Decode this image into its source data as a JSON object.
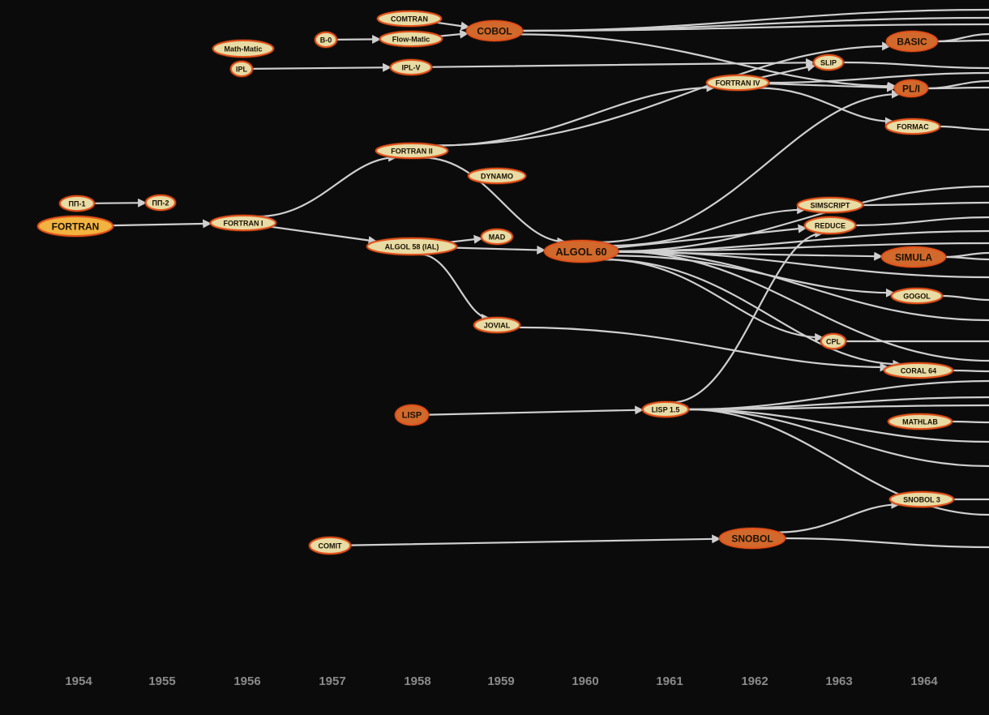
{
  "diagram": {
    "nodes": [
      {
        "id": "fortran",
        "label": "FORTRAN",
        "style": "gold"
      },
      {
        "id": "pp1",
        "label": "ПП-1",
        "style": "light"
      },
      {
        "id": "pp2",
        "label": "ПП-2",
        "style": "light"
      },
      {
        "id": "mathmatic",
        "label": "Math-Matic",
        "style": "light"
      },
      {
        "id": "ipl",
        "label": "IPL",
        "style": "light"
      },
      {
        "id": "fortran1",
        "label": "FORTRAN I",
        "style": "light"
      },
      {
        "id": "b0",
        "label": "B-0",
        "style": "light"
      },
      {
        "id": "comit",
        "label": "COMIT",
        "style": "light"
      },
      {
        "id": "comtran",
        "label": "COMTRAN",
        "style": "light"
      },
      {
        "id": "flowmatic",
        "label": "Flow-Matic",
        "style": "light"
      },
      {
        "id": "iplv",
        "label": "IPL-V",
        "style": "light"
      },
      {
        "id": "fortran2",
        "label": "FORTRAN II",
        "style": "light"
      },
      {
        "id": "algol58",
        "label": "ALGOL 58 (IAL)",
        "style": "light"
      },
      {
        "id": "lisp",
        "label": "LISP",
        "style": "dark"
      },
      {
        "id": "cobol",
        "label": "COBOL",
        "style": "dark"
      },
      {
        "id": "dynamo",
        "label": "DYNAMO",
        "style": "light"
      },
      {
        "id": "mad",
        "label": "MAD",
        "style": "light"
      },
      {
        "id": "jovial",
        "label": "JOVIAL",
        "style": "light"
      },
      {
        "id": "algol60",
        "label": "ALGOL 60",
        "style": "dark"
      },
      {
        "id": "lisp15",
        "label": "LISP 1.5",
        "style": "light"
      },
      {
        "id": "fortran4",
        "label": "FORTRAN IV",
        "style": "light"
      },
      {
        "id": "snobol",
        "label": "SNOBOL",
        "style": "dark"
      },
      {
        "id": "slip",
        "label": "SLIP",
        "style": "light"
      },
      {
        "id": "simscript",
        "label": "SIMSCRIPT",
        "style": "light"
      },
      {
        "id": "reduce",
        "label": "REDUCE",
        "style": "light"
      },
      {
        "id": "cpl",
        "label": "CPL",
        "style": "light"
      },
      {
        "id": "basic",
        "label": "BASIC",
        "style": "dark"
      },
      {
        "id": "pl1",
        "label": "PL/I",
        "style": "dark"
      },
      {
        "id": "formac",
        "label": "FORMAC",
        "style": "light"
      },
      {
        "id": "simula",
        "label": "SIMULA",
        "style": "dark"
      },
      {
        "id": "gogol",
        "label": "GOGOL",
        "style": "light"
      },
      {
        "id": "coral64",
        "label": "CORAL 64",
        "style": "light"
      },
      {
        "id": "mathlab",
        "label": "MATHLAB",
        "style": "light"
      },
      {
        "id": "snobol3",
        "label": "SNOBOL 3",
        "style": "light"
      }
    ],
    "edges": [
      [
        "pp1",
        "pp2"
      ],
      [
        "fortran",
        "fortran1"
      ],
      [
        "ipl",
        "iplv"
      ],
      [
        "b0",
        "flowmatic"
      ],
      [
        "comtran",
        "cobol"
      ],
      [
        "flowmatic",
        "cobol"
      ],
      [
        "fortran1",
        "fortran2"
      ],
      [
        "fortran1",
        "algol58"
      ],
      [
        "algol58",
        "mad"
      ],
      [
        "algol58",
        "algol60"
      ],
      [
        "algol58",
        "jovial"
      ],
      [
        "fortran2",
        "algol60"
      ],
      [
        "fortran2",
        "fortran4"
      ],
      [
        "fortran2",
        "basic"
      ],
      [
        "iplv",
        "slip"
      ],
      [
        "lisp",
        "lisp15"
      ],
      [
        "comit",
        "snobol"
      ],
      [
        "fortran4",
        "slip"
      ],
      [
        "fortran4",
        "pl1"
      ],
      [
        "fortran4",
        "formac"
      ],
      [
        "cobol",
        "pl1"
      ],
      [
        "algol60",
        "pl1"
      ],
      [
        "algol60",
        "simscript"
      ],
      [
        "algol60",
        "reduce"
      ],
      [
        "algol60",
        "simula"
      ],
      [
        "algol60",
        "gogol"
      ],
      [
        "algol60",
        "cpl"
      ],
      [
        "algol60",
        "coral64"
      ],
      [
        "jovial",
        "coral64"
      ],
      [
        "lisp15",
        "reduce"
      ],
      [
        "snobol",
        "snobol3"
      ]
    ],
    "years": [
      "1954",
      "1955",
      "1956",
      "1957",
      "1958",
      "1959",
      "1960",
      "1961",
      "1962",
      "1963",
      "1964"
    ]
  },
  "colors": {
    "background": "#0b0b0b",
    "edge": "#cfcfcf",
    "node_light_fill": "#e8dba4",
    "node_dark_fill": "#d2692c",
    "node_gold_fill": "#f2b340",
    "node_stroke": "#e5541c",
    "year_label": "#8a8a8a"
  }
}
